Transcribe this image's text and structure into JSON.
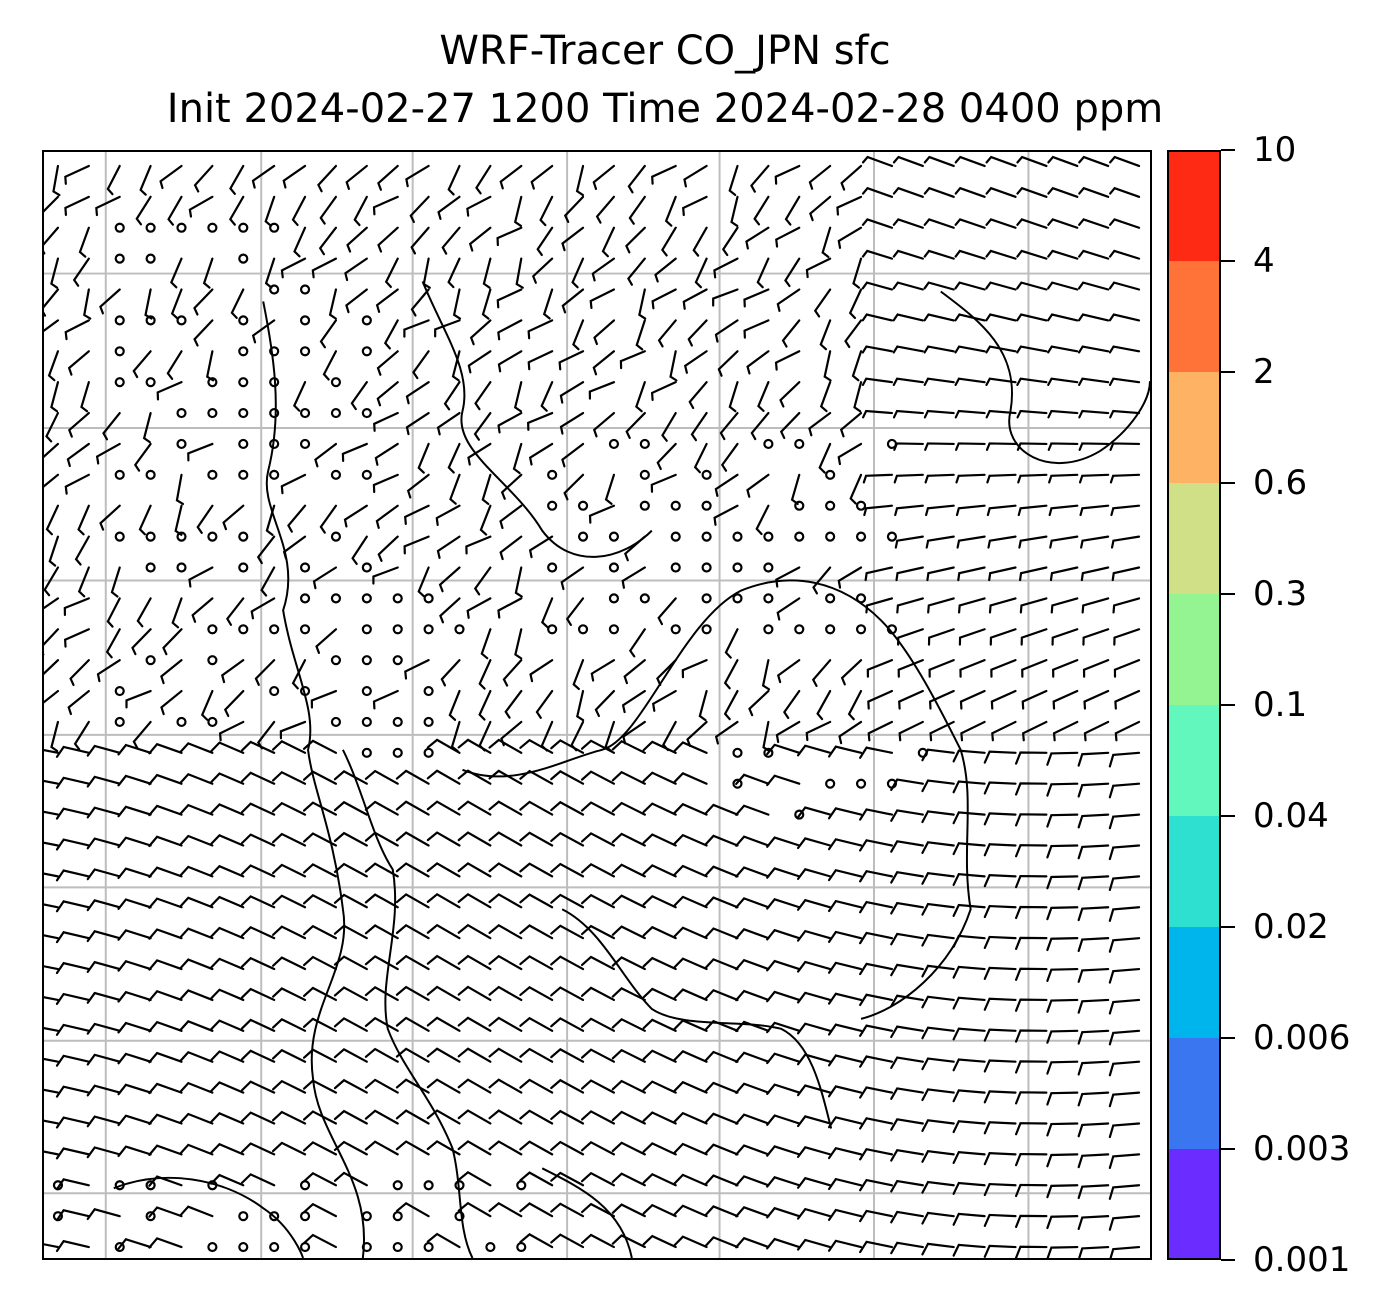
{
  "title": {
    "line1": "WRF-Tracer CO_JPN sfc",
    "line2": "Init 2024-02-27 1200 Time 2024-02-28 0400 ppm"
  },
  "colorbar": {
    "levels": [
      "0.001",
      "0.003",
      "0.006",
      "0.02",
      "0.04",
      "0.1",
      "0.3",
      "0.6",
      "2",
      "4",
      "10"
    ],
    "colors": [
      "#6a2cff",
      "#3a76f0",
      "#00b4ec",
      "#2ee0d0",
      "#62f7bc",
      "#93f491",
      "#d0e086",
      "#fdb363",
      "#ff7238",
      "#ff2a14"
    ]
  },
  "map": {
    "grid": "on",
    "barb_color": "#000000",
    "coastline_color": "#000000"
  }
}
